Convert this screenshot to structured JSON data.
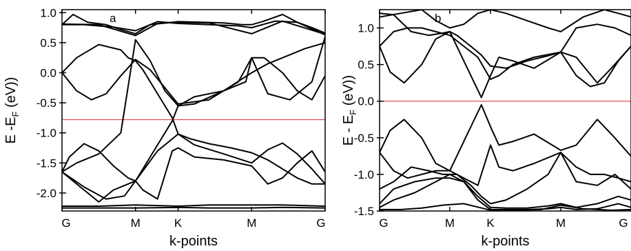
{
  "chart_data": [
    {
      "type": "line",
      "panel_label": "a",
      "xlabel": "k-points",
      "ylabel": "E -E",
      "ylabel_sub": "F",
      "ylabel_unit": " (eV))",
      "k_labels": [
        "G",
        "M",
        "K",
        "M",
        "G"
      ],
      "k_positions": [
        0,
        1,
        1.58,
        2.58,
        3.58
      ],
      "ylim": [
        -2.3,
        1.05
      ],
      "yticks": [
        1.0,
        0.5,
        0.0,
        -0.5,
        -1.0,
        -1.5,
        -2.0
      ],
      "ytick_labels": [
        "1.0",
        "0.5",
        "0.0",
        "-0.5",
        "-1.0",
        "-1.5",
        "-2.0"
      ],
      "fermi_level": -0.78,
      "fermi_color": "#e05050",
      "series": [
        {
          "x": [
            0,
            0.15,
            0.35,
            0.6,
            0.8,
            1,
            1.2,
            1.58,
            1.9,
            2.2,
            2.45,
            2.58,
            2.75,
            3,
            3.2,
            3.4,
            3.58
          ],
          "y": [
            0.8,
            0.97,
            0.84,
            0.8,
            0.72,
            0.65,
            0.8,
            0.85,
            0.84,
            0.83,
            0.8,
            0.8,
            0.86,
            0.97,
            0.84,
            0.75,
            0.66
          ]
        },
        {
          "x": [
            0,
            0.3,
            0.7,
            1,
            1.3,
            1.58,
            2,
            2.4,
            2.58,
            2.9,
            3.2,
            3.58
          ],
          "y": [
            0.8,
            0.8,
            0.76,
            0.7,
            0.85,
            0.82,
            0.8,
            0.78,
            0.75,
            0.86,
            0.84,
            0.63
          ]
        },
        {
          "x": [
            0,
            0.5,
            1,
            1.3,
            1.58,
            2,
            2.58,
            3,
            3.58
          ],
          "y": [
            0.81,
            0.8,
            0.62,
            0.82,
            0.84,
            0.83,
            0.65,
            0.86,
            0.64
          ]
        },
        {
          "x": [
            0,
            0.2,
            0.5,
            0.8,
            0.9,
            1,
            1.1,
            1.3,
            1.5,
            1.58,
            1.75,
            2,
            2.3,
            2.58,
            2.8,
            3,
            3.2,
            3.4,
            3.58
          ],
          "y": [
            0.0,
            0.25,
            0.47,
            0.38,
            0.25,
            0.2,
            0.05,
            -0.35,
            -0.75,
            -1.02,
            -1.1,
            -1.18,
            -1.25,
            -1.33,
            -1.45,
            -1.6,
            -1.75,
            -1.85,
            -1.85
          ]
        },
        {
          "x": [
            0,
            0.2,
            0.4,
            0.6,
            0.8,
            1,
            1.2,
            1.58,
            2,
            2.4,
            2.58,
            2.75,
            3,
            3.2,
            3.4,
            3.58
          ],
          "y": [
            0.0,
            -0.3,
            -0.45,
            -0.35,
            -0.05,
            0.22,
            0.05,
            -0.52,
            -0.45,
            -0.15,
            0.25,
            0.25,
            0.0,
            -0.3,
            -0.45,
            -0.05
          ]
        },
        {
          "x": [
            0,
            0.2,
            0.5,
            0.8,
            1,
            1.2,
            1.4,
            1.58,
            1.8,
            2.2,
            2.58,
            2.8,
            3.1,
            3.3,
            3.58
          ],
          "y": [
            -1.65,
            -1.5,
            -1.35,
            -1.0,
            0.55,
            0.2,
            -0.3,
            -0.55,
            -0.52,
            -0.3,
            0.0,
            0.15,
            0.3,
            0.4,
            0.5
          ]
        },
        {
          "x": [
            0,
            0.1,
            0.3,
            0.5,
            0.7,
            0.9,
            1,
            1.1,
            1.3,
            1.5,
            1.58,
            1.8,
            2.2,
            2.5,
            2.58,
            2.8,
            3.1,
            3.4,
            3.58
          ],
          "y": [
            -1.65,
            -1.4,
            -1.18,
            -1.3,
            -1.55,
            -1.75,
            -1.8,
            -1.6,
            -1.2,
            -0.8,
            -0.55,
            -0.4,
            -0.3,
            -0.15,
            0.25,
            -0.35,
            -0.45,
            -0.15,
            0.6
          ]
        },
        {
          "x": [
            0,
            0.3,
            0.6,
            0.85,
            1,
            1.15,
            1.3,
            1.5,
            1.58,
            1.8,
            2.2,
            2.58,
            2.8,
            3,
            3.2,
            3.4,
            3.58
          ],
          "y": [
            -1.65,
            -1.9,
            -2.1,
            -2.05,
            -1.8,
            -1.55,
            -1.3,
            -1.1,
            -1.02,
            -1.2,
            -1.35,
            -1.5,
            -1.28,
            -1.17,
            -1.35,
            -1.6,
            -1.85
          ]
        },
        {
          "x": [
            0,
            0.3,
            0.5,
            0.7,
            0.9,
            1,
            1.1,
            1.3,
            1.5,
            1.58,
            1.8,
            2.2,
            2.58,
            2.8,
            3,
            3.2,
            3.4,
            3.58
          ],
          "y": [
            -1.65,
            -1.95,
            -2.15,
            -1.95,
            -1.85,
            -1.8,
            -1.95,
            -2.1,
            -1.3,
            -1.25,
            -1.4,
            -1.45,
            -1.55,
            -1.85,
            -1.75,
            -1.5,
            -1.3,
            -1.65
          ]
        },
        {
          "x": [
            0,
            0.5,
            1,
            1.58,
            2,
            2.58,
            3,
            3.58
          ],
          "y": [
            -2.22,
            -2.22,
            -2.2,
            -2.22,
            -2.2,
            -2.2,
            -2.2,
            -2.22
          ]
        },
        {
          "x": [
            0,
            0.5,
            1,
            1.58,
            2,
            2.58,
            3,
            3.58
          ],
          "y": [
            -2.25,
            -2.25,
            -2.25,
            -2.24,
            -2.25,
            -2.25,
            -2.24,
            -2.25
          ]
        }
      ]
    },
    {
      "type": "line",
      "panel_label": "b",
      "xlabel": "k-points",
      "ylabel": "E - E",
      "ylabel_sub": "F",
      "ylabel_unit": " (eV))",
      "k_labels": [
        "G",
        "M",
        "K",
        "M",
        "G"
      ],
      "k_positions": [
        0,
        1,
        1.58,
        2.58,
        3.58
      ],
      "ylim": [
        -1.5,
        1.25
      ],
      "yticks": [
        1.0,
        0.5,
        0.0,
        -0.5,
        -1.0,
        -1.5
      ],
      "ytick_labels": [
        "1.0",
        "0.5",
        "0.0",
        "-0.5",
        "-1.0",
        "-1.5"
      ],
      "fermi_level": 0.0,
      "fermi_color": "#e05050",
      "series": [
        {
          "x": [
            0,
            0.3,
            0.6,
            0.8,
            1,
            1.2,
            1.4,
            1.58,
            1.8,
            2.1,
            2.4,
            2.58,
            2.9,
            3.2,
            3.4,
            3.58
          ],
          "y": [
            1.15,
            1.2,
            1.25,
            1.1,
            1.0,
            1.05,
            1.2,
            1.25,
            1.2,
            1.1,
            1.0,
            0.95,
            1.15,
            1.25,
            1.2,
            1.15
          ]
        },
        {
          "x": [
            0,
            0.2,
            0.45,
            0.7,
            0.9,
            1,
            1.1,
            1.3,
            1.45,
            1.58,
            1.8,
            2.1,
            2.4,
            2.58,
            2.8,
            3.1,
            3.35,
            3.58
          ],
          "y": [
            1.2,
            1.18,
            0.95,
            0.9,
            0.93,
            0.95,
            0.9,
            0.75,
            0.63,
            0.48,
            0.45,
            0.55,
            0.62,
            0.67,
            1.0,
            1.05,
            1.0,
            0.9
          ]
        },
        {
          "x": [
            0,
            0.15,
            0.35,
            0.6,
            0.8,
            1,
            1.2,
            1.45,
            1.58,
            1.7,
            1.9,
            2.2,
            2.58,
            2.8,
            3.1,
            3.3,
            3.58
          ],
          "y": [
            0.75,
            0.4,
            0.25,
            0.5,
            0.85,
            0.95,
            0.55,
            0.05,
            0.35,
            0.6,
            0.55,
            0.45,
            0.67,
            0.6,
            0.25,
            0.45,
            0.75
          ]
        },
        {
          "x": [
            0,
            0.2,
            0.4,
            0.6,
            0.8,
            1,
            1.2,
            1.4,
            1.58,
            1.7,
            1.9,
            2.2,
            2.58,
            2.8,
            3,
            3.2,
            3.4,
            3.58
          ],
          "y": [
            0.75,
            0.95,
            1.0,
            1.0,
            0.95,
            0.9,
            0.75,
            0.6,
            0.3,
            0.35,
            0.5,
            0.6,
            0.67,
            0.35,
            0.2,
            0.25,
            0.55,
            0.75
          ]
        },
        {
          "x": [
            0,
            0.15,
            0.35,
            0.6,
            0.8,
            1,
            1.2,
            1.45,
            1.58,
            1.7,
            1.9,
            2.2,
            2.58,
            2.8,
            3.1,
            3.3,
            3.58
          ],
          "y": [
            -0.7,
            -0.4,
            -0.25,
            -0.5,
            -0.85,
            -0.95,
            -0.55,
            -0.05,
            -0.35,
            -0.6,
            -0.55,
            -0.45,
            -0.67,
            -0.6,
            -0.25,
            -0.45,
            -0.75
          ]
        },
        {
          "x": [
            0,
            0.2,
            0.4,
            0.6,
            0.8,
            1,
            1.2,
            1.4,
            1.58,
            1.7,
            1.9,
            2.2,
            2.58,
            2.8,
            3,
            3.2,
            3.4,
            3.58
          ],
          "y": [
            -0.7,
            -0.95,
            -1.05,
            -1.0,
            -0.95,
            -0.95,
            -1.05,
            -1.15,
            -0.6,
            -0.9,
            -0.95,
            -0.85,
            -0.7,
            -0.9,
            -1.0,
            -1.0,
            -1.05,
            -1.1
          ]
        },
        {
          "x": [
            0,
            0.2,
            0.45,
            0.7,
            0.9,
            1,
            1.1,
            1.3,
            1.45,
            1.58,
            1.8,
            2.1,
            2.4,
            2.58,
            2.8,
            3.1,
            3.35,
            3.58
          ],
          "y": [
            -1.2,
            -1.1,
            -0.9,
            -0.95,
            -1.0,
            -1.0,
            -1.0,
            -1.15,
            -1.3,
            -1.4,
            -1.35,
            -1.2,
            -1.0,
            -0.7,
            -1.1,
            -1.15,
            -1.0,
            -1.2
          ]
        },
        {
          "x": [
            0,
            0.2,
            0.5,
            0.8,
            1,
            1.2,
            1.4,
            1.58,
            1.8,
            2.1,
            2.4,
            2.58,
            2.8,
            3.1,
            3.4,
            3.58
          ],
          "y": [
            -1.4,
            -1.2,
            -1.1,
            -1.05,
            -1.05,
            -1.1,
            -1.3,
            -1.45,
            -1.46,
            -1.46,
            -1.43,
            -1.4,
            -1.45,
            -1.4,
            -1.3,
            -1.35
          ]
        },
        {
          "x": [
            0,
            0.2,
            0.5,
            0.8,
            1,
            1.2,
            1.4,
            1.58,
            1.8,
            2.1,
            2.4,
            2.58,
            2.8,
            3.1,
            3.4,
            3.58
          ],
          "y": [
            -1.45,
            -1.35,
            -1.25,
            -1.1,
            -1.0,
            -1.1,
            -1.35,
            -1.48,
            -1.48,
            -1.48,
            -1.47,
            -1.45,
            -1.48,
            -1.47,
            -1.4,
            -1.45
          ]
        },
        {
          "x": [
            0,
            0.3,
            0.6,
            0.9,
            1.2,
            1.5,
            1.58,
            1.9,
            2.3,
            2.58,
            2.9,
            3.3,
            3.58
          ],
          "y": [
            -1.48,
            -1.48,
            -1.46,
            -1.42,
            -1.4,
            -1.47,
            -1.49,
            -1.49,
            -1.48,
            -1.42,
            -1.47,
            -1.49,
            -1.48
          ]
        }
      ]
    }
  ]
}
